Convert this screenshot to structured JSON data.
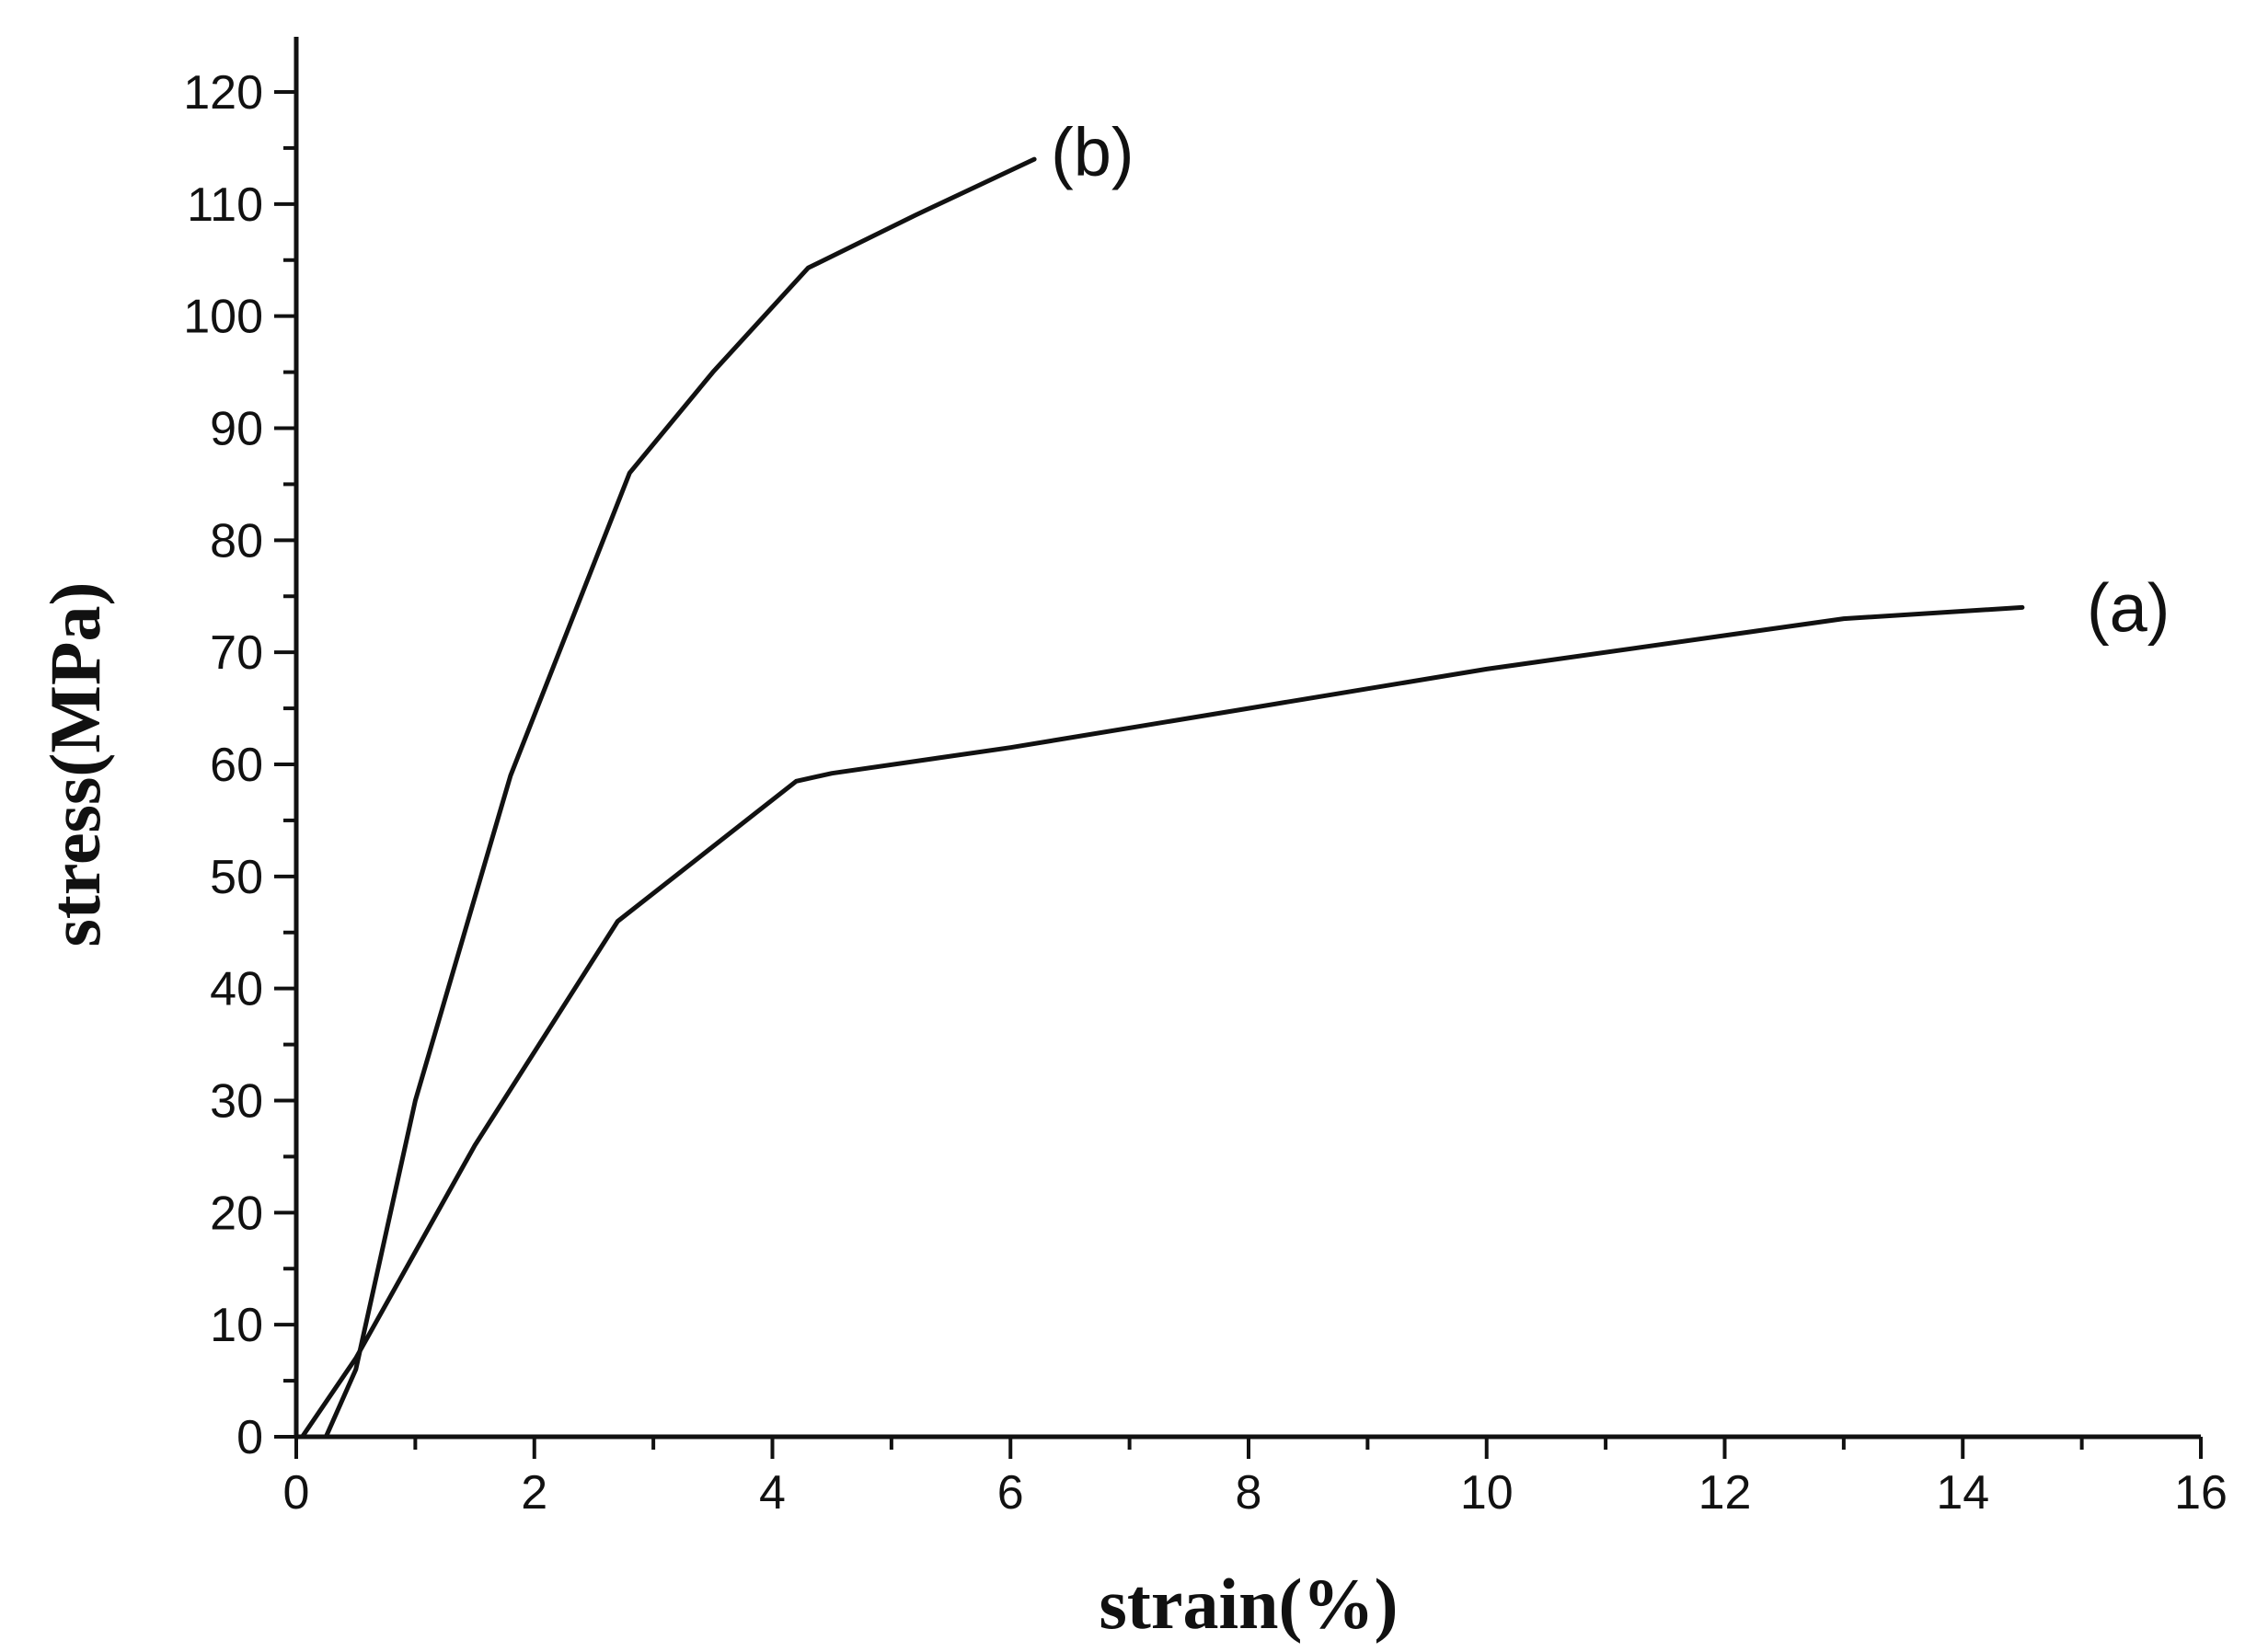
{
  "chart_data": {
    "type": "line",
    "title": "",
    "xlabel": "strain(%)",
    "ylabel": "stress(MPa)",
    "xlim": [
      0,
      16
    ],
    "ylim": [
      0,
      120
    ],
    "x_ticks": [
      0,
      2,
      4,
      6,
      8,
      10,
      12,
      14,
      16
    ],
    "y_ticks": [
      0,
      10,
      20,
      30,
      40,
      50,
      60,
      70,
      80,
      90,
      100,
      110,
      120
    ],
    "x_tick_labels": [
      "0",
      "2",
      "4",
      "6",
      "8",
      "10",
      "12",
      "14",
      "16"
    ],
    "y_tick_labels": [
      "0",
      "10",
      "20",
      "30",
      "40",
      "50",
      "60",
      "70",
      "80",
      "90",
      "100",
      "110",
      "120"
    ],
    "grid": false,
    "line_color": "#111111",
    "series": [
      {
        "name": "(a)",
        "x": [
          0.05,
          0.5,
          1.5,
          2.7,
          4.2,
          4.5,
          6.0,
          8.0,
          10.0,
          12.0,
          13.0,
          14.5
        ],
        "y": [
          0,
          7,
          26,
          46,
          58.5,
          59.2,
          61.5,
          65,
          68.5,
          71.5,
          73,
          74
        ]
      },
      {
        "name": "(b)",
        "x": [
          0.25,
          0.5,
          1.0,
          1.8,
          2.8,
          3.5,
          4.3,
          5.2,
          6.2
        ],
        "y": [
          0,
          6,
          30,
          59,
          86,
          95,
          104.3,
          109,
          114
        ]
      }
    ]
  }
}
